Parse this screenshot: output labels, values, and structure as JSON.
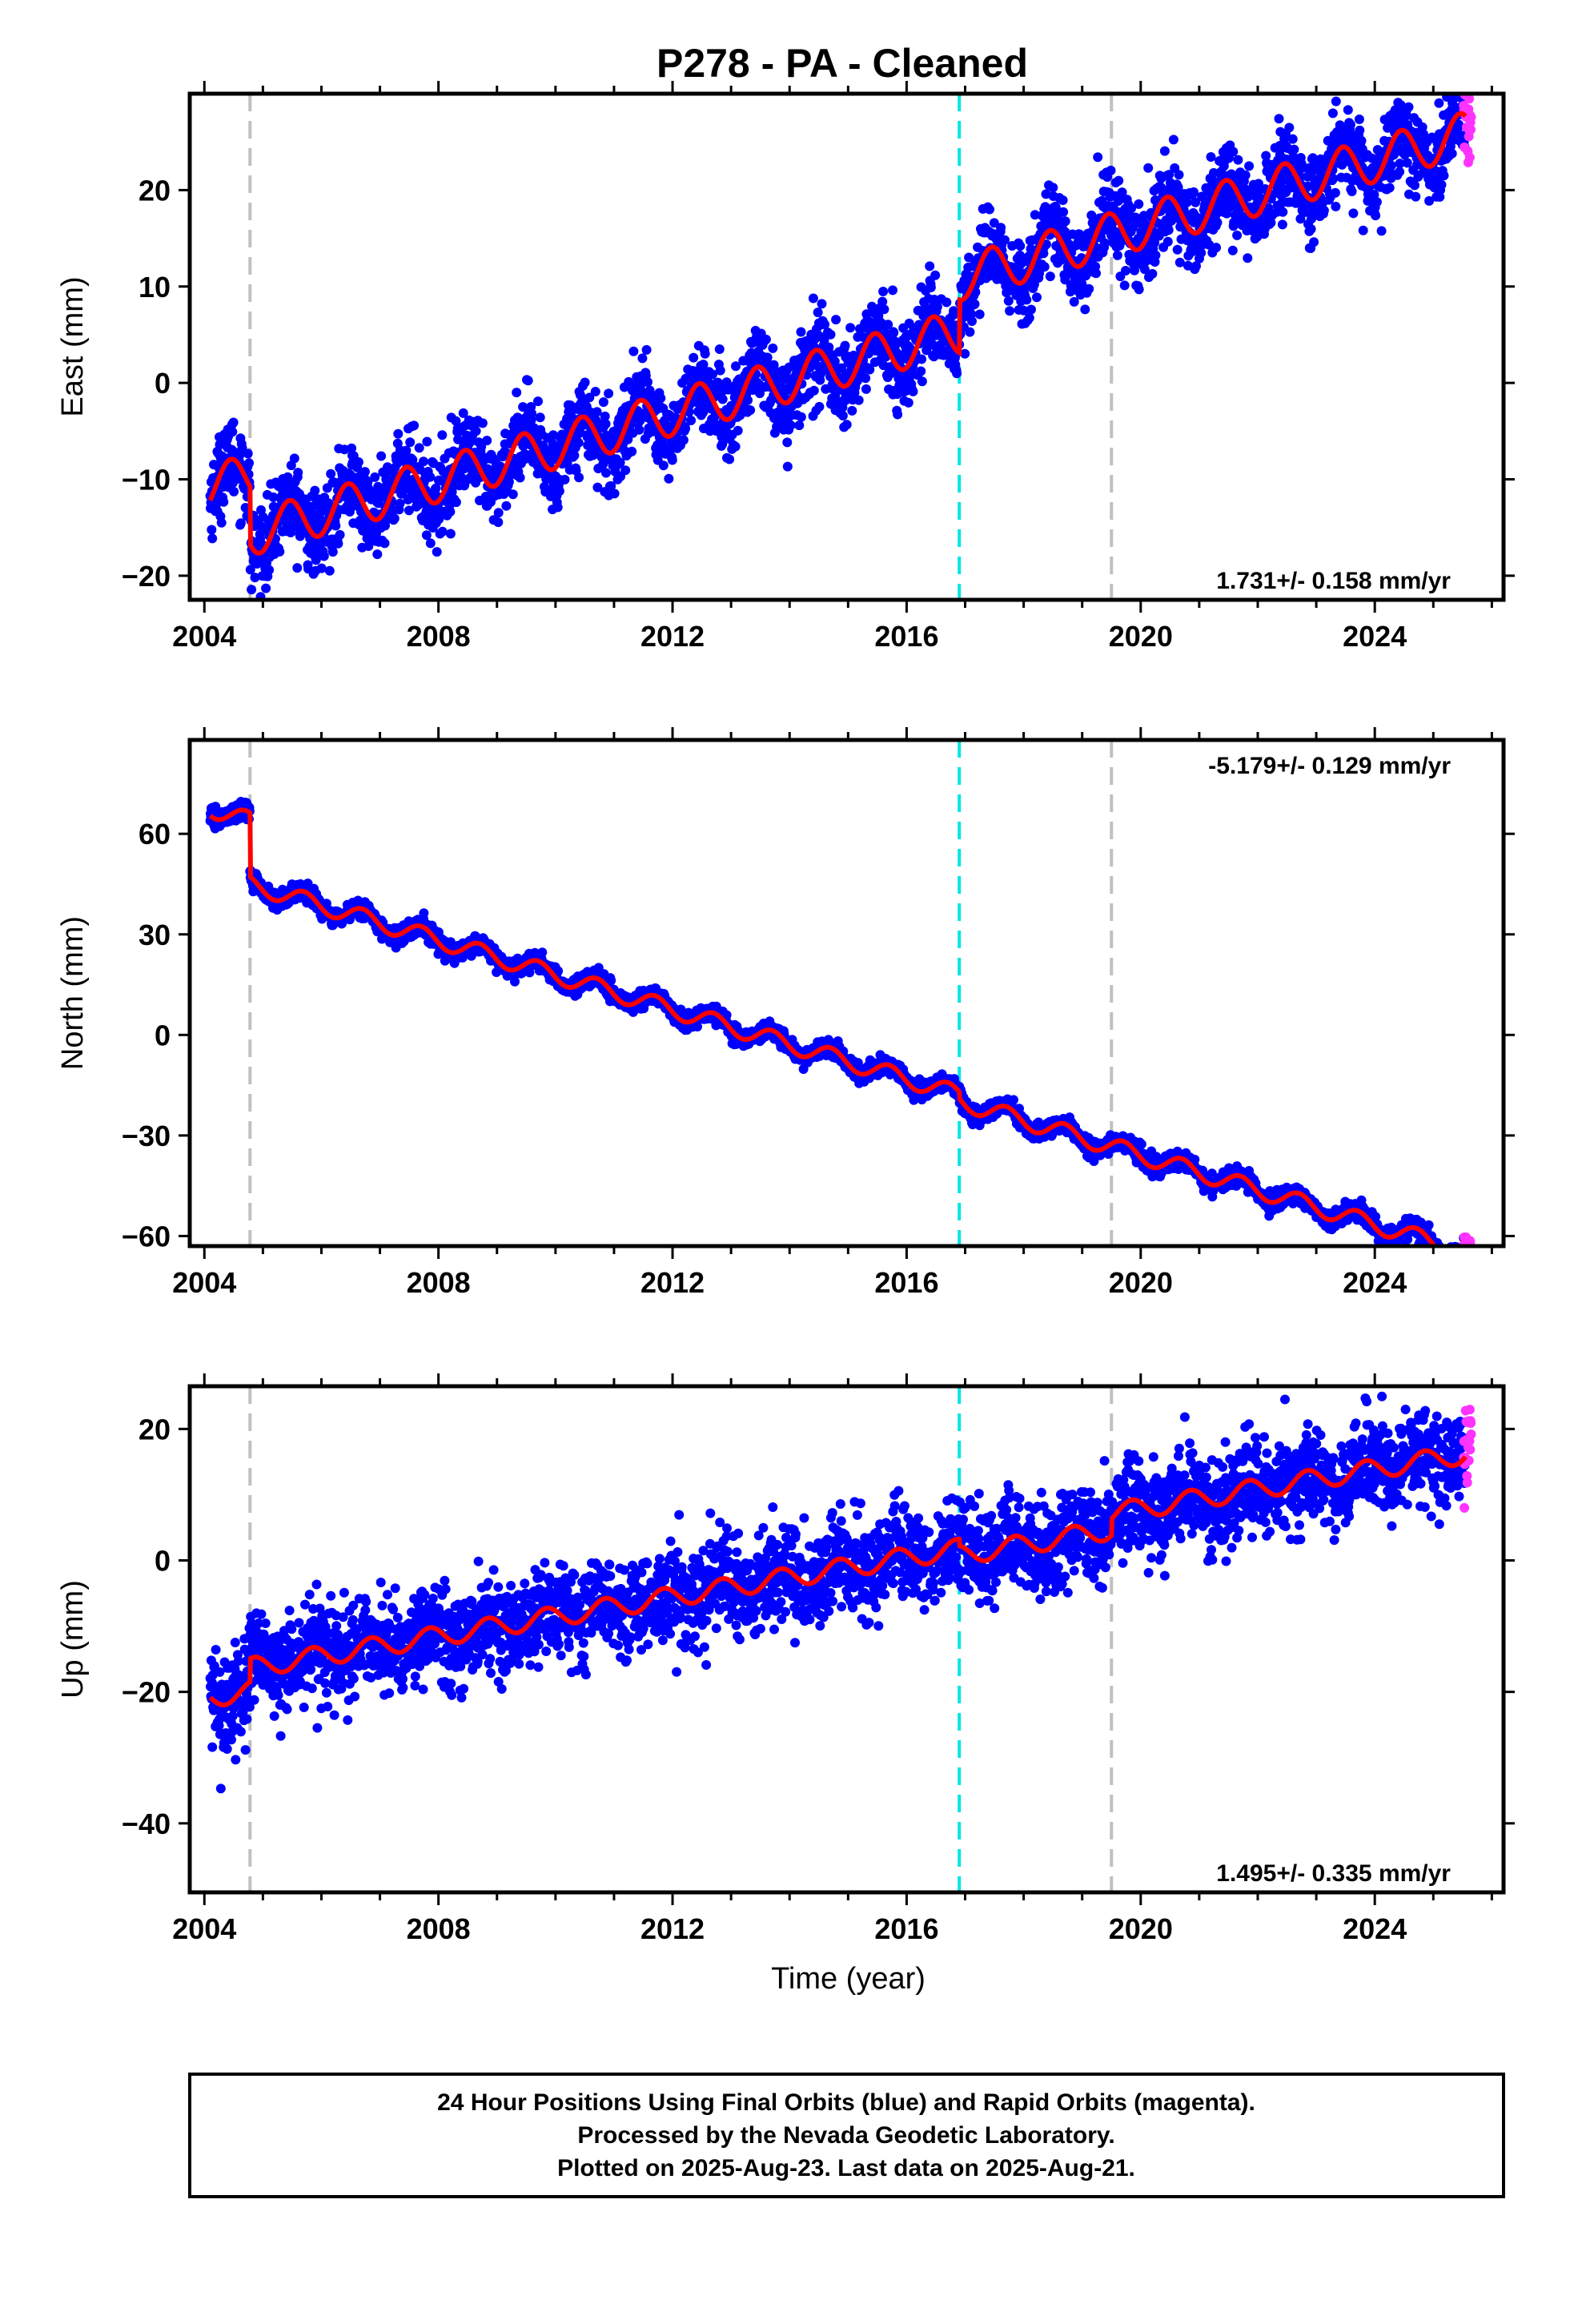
{
  "title": "P278  - PA - Cleaned",
  "caption": {
    "lines": [
      "24 Hour Positions Using Final Orbits (blue) and Rapid Orbits (magenta).",
      "Processed by the Nevada Geodetic Laboratory.",
      "Plotted on 2025-Aug-23. Last data on 2025-Aug-21."
    ]
  },
  "colors": {
    "final_orbits": "#0000ff",
    "rapid_orbits": "#ff33ff",
    "model": "#ff0000",
    "equipment_change": "#c0c0c0",
    "earthquake": "#00e5e5",
    "frame": "#000000"
  },
  "chart_data": [
    {
      "type": "scatter",
      "component": "east",
      "ylabel": "East (mm)",
      "xlabel": "",
      "xlim": [
        2003.75,
        2026.2
      ],
      "ylim": [
        -22.5,
        30
      ],
      "xticks": [
        2004,
        2008,
        2012,
        2016,
        2020,
        2024
      ],
      "yticks": [
        -20,
        -10,
        0,
        10,
        20
      ],
      "rate_text": "1.731+/- 0.158 mm/yr",
      "rate_position": "bottom-right",
      "model": {
        "intercept_2004": -11.0,
        "rate": 1.731,
        "annual_amplitude": 2.3,
        "annual_phase": 0.2,
        "steps": [
          {
            "x": 2004.78,
            "dy": -6.0
          },
          {
            "x": 2016.9,
            "dy": 5.5
          },
          {
            "x": 2019.5,
            "dy": 0
          }
        ]
      },
      "noise": 2.1,
      "data_range": [
        2004.1,
        2025.55
      ],
      "rapid_range": [
        2025.52,
        2025.65
      ],
      "vlines": [
        {
          "x": 2004.78,
          "kind": "equipment"
        },
        {
          "x": 2016.9,
          "kind": "earthquake"
        },
        {
          "x": 2019.5,
          "kind": "equipment"
        }
      ]
    },
    {
      "type": "scatter",
      "component": "north",
      "ylabel": "North (mm)",
      "xlabel": "",
      "xlim": [
        2003.75,
        2026.2
      ],
      "ylim": [
        -63,
        88
      ],
      "xticks": [
        2004,
        2008,
        2012,
        2016,
        2020,
        2024
      ],
      "yticks": [
        -60,
        -30,
        0,
        30,
        60
      ],
      "rate_text": "-5.179+/- 0.129 mm/yr",
      "rate_position": "top-right",
      "model": {
        "intercept_2004": 68.0,
        "rate": -5.179,
        "annual_amplitude": 2.6,
        "annual_phase": 0.45,
        "steps": [
          {
            "x": 2004.78,
            "dy": -19.0
          },
          {
            "x": 2016.9,
            "dy": -2.0
          },
          {
            "x": 2019.5,
            "dy": 0
          }
        ]
      },
      "noise": 1.3,
      "data_range": [
        2004.1,
        2025.55
      ],
      "rapid_range": [
        2025.52,
        2025.65
      ],
      "vlines": [
        {
          "x": 2004.78,
          "kind": "equipment"
        },
        {
          "x": 2016.9,
          "kind": "earthquake"
        },
        {
          "x": 2019.5,
          "kind": "equipment"
        }
      ]
    },
    {
      "type": "scatter",
      "component": "up",
      "ylabel": "Up (mm)",
      "xlabel": "Time (year)",
      "xlim": [
        2003.75,
        2026.2
      ],
      "ylim": [
        -50.5,
        26.5
      ],
      "xticks": [
        2004,
        2008,
        2012,
        2016,
        2020,
        2024
      ],
      "yticks": [
        -40,
        -20,
        0,
        20
      ],
      "rate_text": "1.495+/- 0.335 mm/yr",
      "rate_position": "bottom-right",
      "model": {
        "intercept_2004": -21.0,
        "rate": 1.495,
        "annual_amplitude": 1.5,
        "annual_phase": 0.6,
        "steps": [
          {
            "x": 2004.78,
            "dy": 3.5
          },
          {
            "x": 2016.9,
            "dy": -1.0
          },
          {
            "x": 2019.5,
            "dy": 2.5
          }
        ]
      },
      "noise": 3.6,
      "data_range": [
        2004.1,
        2025.55
      ],
      "rapid_range": [
        2025.52,
        2025.65
      ],
      "vlines": [
        {
          "x": 2004.78,
          "kind": "equipment"
        },
        {
          "x": 2016.9,
          "kind": "earthquake"
        },
        {
          "x": 2019.5,
          "kind": "equipment"
        }
      ]
    }
  ]
}
